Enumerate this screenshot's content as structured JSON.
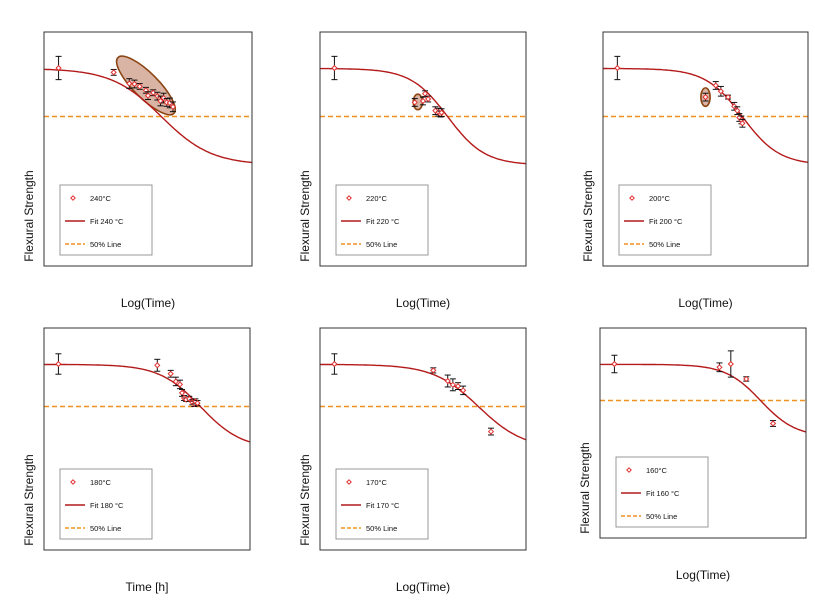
{
  "colors": {
    "fit": "#b41a1a",
    "marker": "#e03030",
    "error_bar": "#111111",
    "half_line": "#f0901e",
    "highlight_fill": "#d9b3a3",
    "highlight_stroke": "#8b4513",
    "axis": "#333333",
    "legend_border": "#999999"
  },
  "chart_data": [
    {
      "type": "scatter",
      "xlabel": "Log(Time)",
      "ylabel": "Flexural Strength",
      "grid": false,
      "legend_position": "bottom-left",
      "legend": {
        "data": "240°C",
        "fit": "Fit 240 °C",
        "half": "50% Line"
      },
      "xlim": [
        0,
        1
      ],
      "ylim": [
        0,
        1
      ],
      "half_line": 0.5,
      "fit": {
        "top": 0.995,
        "mid": 0.565,
        "width": 0.12
      },
      "points": [
        {
          "x": 0.07,
          "y": 1.0,
          "err": 0.12
        },
        {
          "x": 0.335,
          "y": 0.955,
          "err": 0.03
        },
        {
          "x": 0.41,
          "y": 0.84,
          "err": 0.05
        },
        {
          "x": 0.435,
          "y": 0.835,
          "err": 0.04
        },
        {
          "x": 0.46,
          "y": 0.81,
          "err": 0.03
        },
        {
          "x": 0.49,
          "y": 0.77,
          "err": 0.03
        },
        {
          "x": 0.5,
          "y": 0.715,
          "err": 0.04
        },
        {
          "x": 0.525,
          "y": 0.745,
          "err": 0.03
        },
        {
          "x": 0.545,
          "y": 0.71,
          "err": 0.04
        },
        {
          "x": 0.56,
          "y": 0.66,
          "err": 0.05
        },
        {
          "x": 0.575,
          "y": 0.69,
          "err": 0.05
        },
        {
          "x": 0.59,
          "y": 0.645,
          "err": 0.04
        },
        {
          "x": 0.605,
          "y": 0.64,
          "err": 0.05
        },
        {
          "x": 0.62,
          "y": 0.6,
          "err": 0.05
        }
      ],
      "highlight": {
        "cx": 0.49,
        "cy": 0.82,
        "rx": 0.38,
        "ry": 0.12,
        "angle": 45
      }
    },
    {
      "type": "scatter",
      "xlabel": "Log(Time)",
      "ylabel": "Flexural Strength",
      "grid": false,
      "legend_position": "bottom-left",
      "legend": {
        "data": "220°C",
        "fit": "Fit 220 °C",
        "half": "50% Line"
      },
      "xlim": [
        0,
        1
      ],
      "ylim": [
        0,
        1
      ],
      "half_line": 0.5,
      "fit": {
        "top": 0.995,
        "mid": 0.62,
        "width": 0.09
      },
      "points": [
        {
          "x": 0.07,
          "y": 1.0,
          "err": 0.12
        },
        {
          "x": 0.46,
          "y": 0.645,
          "err": 0.04
        },
        {
          "x": 0.5,
          "y": 0.66,
          "err": 0.04
        },
        {
          "x": 0.51,
          "y": 0.735,
          "err": 0.03
        },
        {
          "x": 0.525,
          "y": 0.68,
          "err": 0.03
        },
        {
          "x": 0.56,
          "y": 0.56,
          "err": 0.04
        },
        {
          "x": 0.575,
          "y": 0.545,
          "err": 0.04
        },
        {
          "x": 0.585,
          "y": 0.525,
          "err": 0.03
        },
        {
          "x": 0.59,
          "y": 0.54,
          "err": 0.04
        }
      ],
      "highlight": {
        "cx": 0.475,
        "cy": 0.65,
        "rx": 0.045,
        "ry": 0.075,
        "angle": 0
      }
    },
    {
      "type": "scatter",
      "xlabel": "Log(Time)",
      "ylabel": "Flexural Strength",
      "grid": false,
      "legend_position": "bottom-left",
      "legend": {
        "data": "200°C",
        "fit": "Fit 200 °C",
        "half": "50% Line"
      },
      "xlim": [
        0,
        1
      ],
      "ylim": [
        0,
        1
      ],
      "half_line": 0.5,
      "fit": {
        "top": 0.995,
        "mid": 0.68,
        "width": 0.09
      },
      "points": [
        {
          "x": 0.07,
          "y": 1.0,
          "err": 0.12
        },
        {
          "x": 0.5,
          "y": 0.7,
          "err": 0.04
        },
        {
          "x": 0.55,
          "y": 0.82,
          "err": 0.04
        },
        {
          "x": 0.575,
          "y": 0.76,
          "err": 0.05
        },
        {
          "x": 0.61,
          "y": 0.7,
          "err": 0.02
        },
        {
          "x": 0.64,
          "y": 0.605,
          "err": 0.04
        },
        {
          "x": 0.655,
          "y": 0.56,
          "err": 0.04
        },
        {
          "x": 0.665,
          "y": 0.49,
          "err": 0.04
        },
        {
          "x": 0.675,
          "y": 0.465,
          "err": 0.04
        },
        {
          "x": 0.68,
          "y": 0.43,
          "err": 0.04
        }
      ],
      "highlight": {
        "cx": 0.5,
        "cy": 0.7,
        "rx": 0.045,
        "ry": 0.09,
        "angle": 0
      }
    },
    {
      "type": "scatter",
      "xlabel": "Time [h]",
      "ylabel": "Flexural Strength",
      "grid": false,
      "legend_position": "bottom-left",
      "legend": {
        "data": "180°C",
        "fit": "Fit 180 °C",
        "half": "50% Line"
      },
      "xlim": [
        0,
        1
      ],
      "ylim": [
        0,
        1
      ],
      "half_line": 0.5,
      "fit": {
        "top": 0.995,
        "mid": 0.76,
        "width": 0.1
      },
      "points": [
        {
          "x": 0.07,
          "y": 1.0,
          "err": 0.12
        },
        {
          "x": 0.55,
          "y": 0.985,
          "err": 0.07
        },
        {
          "x": 0.615,
          "y": 0.885,
          "err": 0.04
        },
        {
          "x": 0.64,
          "y": 0.795,
          "err": 0.05
        },
        {
          "x": 0.66,
          "y": 0.76,
          "err": 0.05
        },
        {
          "x": 0.67,
          "y": 0.66,
          "err": 0.04
        },
        {
          "x": 0.68,
          "y": 0.6,
          "err": 0.03
        },
        {
          "x": 0.69,
          "y": 0.58,
          "err": 0.02
        },
        {
          "x": 0.705,
          "y": 0.59,
          "err": 0.03
        },
        {
          "x": 0.72,
          "y": 0.55,
          "err": 0.03
        },
        {
          "x": 0.73,
          "y": 0.53,
          "err": 0.03
        },
        {
          "x": 0.735,
          "y": 0.56,
          "err": 0.03
        },
        {
          "x": 0.745,
          "y": 0.54,
          "err": 0.03
        }
      ],
      "highlight": null
    },
    {
      "type": "scatter",
      "xlabel": "Log(Time)",
      "ylabel": "Flexural Strength",
      "grid": false,
      "legend_position": "bottom-left",
      "legend": {
        "data": "170°C",
        "fit": "Fit 170 °C",
        "half": "50% Line"
      },
      "xlim": [
        0,
        1
      ],
      "ylim": [
        0,
        1
      ],
      "half_line": 0.5,
      "fit": {
        "top": 0.995,
        "mid": 0.77,
        "width": 0.11
      },
      "points": [
        {
          "x": 0.07,
          "y": 1.0,
          "err": 0.12
        },
        {
          "x": 0.55,
          "y": 0.925,
          "err": 0.03
        },
        {
          "x": 0.62,
          "y": 0.8,
          "err": 0.07
        },
        {
          "x": 0.645,
          "y": 0.755,
          "err": 0.07
        },
        {
          "x": 0.67,
          "y": 0.74,
          "err": 0.04
        },
        {
          "x": 0.695,
          "y": 0.69,
          "err": 0.05
        },
        {
          "x": 0.83,
          "y": 0.205,
          "err": 0.04
        }
      ],
      "highlight": null
    },
    {
      "type": "scatter",
      "xlabel": "Log(Time)",
      "ylabel": "Flexural Strength",
      "grid": false,
      "legend_position": "bottom-left",
      "legend": {
        "data": "160°C",
        "fit": "Fit 160 °C",
        "half": "50% Line"
      },
      "xlim": [
        0,
        1
      ],
      "ylim": [
        0,
        1
      ],
      "half_line": 0.5,
      "fit": {
        "top": 0.995,
        "mid": 0.78,
        "width": 0.085
      },
      "points": [
        {
          "x": 0.07,
          "y": 1.0,
          "err": 0.12
        },
        {
          "x": 0.58,
          "y": 0.955,
          "err": 0.06
        },
        {
          "x": 0.635,
          "y": 1.0,
          "err": 0.18
        },
        {
          "x": 0.71,
          "y": 0.795,
          "err": 0.03
        },
        {
          "x": 0.84,
          "y": 0.185,
          "err": 0.04
        }
      ],
      "highlight": null
    }
  ]
}
